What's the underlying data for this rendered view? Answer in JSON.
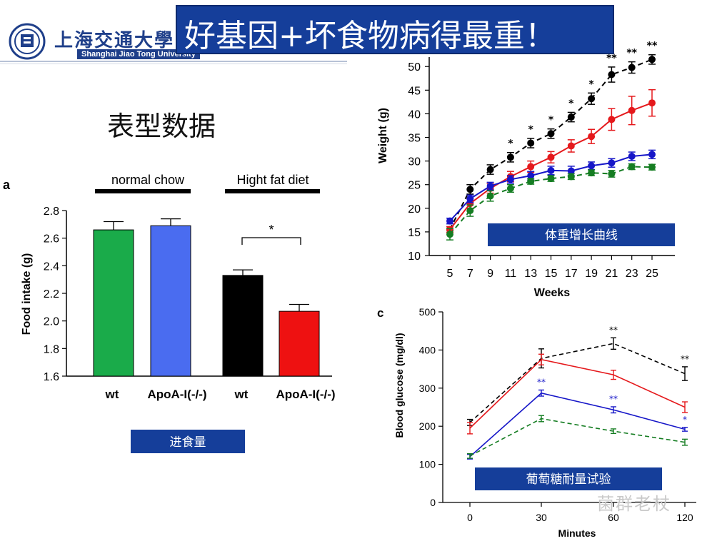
{
  "header": {
    "logo_chinese": "上海交通大學",
    "logo_english": "Shanghai Jiao Tong University",
    "title": "好基因+坏食物病得最重！"
  },
  "left_title": "表型数据",
  "watermark": "菌群老杖",
  "colors": {
    "title_bg": "#153e9a",
    "label_box": "#153e9a",
    "wt_normal": "#1aab4a",
    "apoa_normal": "#4a6cf0",
    "wt_hfd": "#000000",
    "apoa_hfd": "#ee1111",
    "black_series": "#000000",
    "red_series": "#e5191c",
    "blue_series": "#1616c8",
    "green_series": "#157d22"
  },
  "chart_data": [
    {
      "id": "food-intake",
      "type": "bar",
      "panel_letter": "a",
      "ylabel": "Food intake (g)",
      "ylim": [
        1.6,
        2.8
      ],
      "yticks": [
        "1.6",
        "1.8",
        "2.0",
        "2.2",
        "2.4",
        "2.6",
        "2.8"
      ],
      "groups": [
        "normal chow",
        "Hight fat diet"
      ],
      "categories": [
        "wt",
        "ApoA-I(-/-)",
        "wt",
        "ApoA-I(-/-)"
      ],
      "values": [
        2.66,
        2.69,
        2.33,
        2.07
      ],
      "errors": [
        0.06,
        0.05,
        0.04,
        0.05
      ],
      "significance": "*",
      "label_box": "进食量"
    },
    {
      "id": "body-weight",
      "type": "line",
      "ylabel": "Weight (g)",
      "xlabel": "Weeks",
      "ylim": [
        10,
        52
      ],
      "yticks": [
        "10",
        "15",
        "20",
        "25",
        "30",
        "35",
        "40",
        "45",
        "50"
      ],
      "x": [
        5,
        7,
        9,
        11,
        13,
        15,
        17,
        19,
        21,
        23,
        25
      ],
      "series": [
        {
          "name": "black",
          "values": [
            15.5,
            24.0,
            28.2,
            30.8,
            33.8,
            35.8,
            39.3,
            43.2,
            48.3,
            49.8,
            51.5
          ],
          "errors": [
            0.6,
            1.0,
            1.0,
            1.0,
            1.0,
            1.0,
            1.0,
            1.2,
            1.6,
            1.2,
            1.0
          ]
        },
        {
          "name": "red",
          "values": [
            15.5,
            21.0,
            24.2,
            26.7,
            28.8,
            30.8,
            33.2,
            35.2,
            38.8,
            40.7,
            42.3
          ],
          "errors": [
            0.6,
            1.0,
            1.0,
            1.1,
            1.2,
            1.2,
            1.3,
            1.5,
            2.3,
            3.0,
            2.8
          ]
        },
        {
          "name": "blue",
          "values": [
            17.3,
            22.0,
            24.7,
            26.1,
            26.9,
            28.0,
            27.9,
            29.0,
            29.6,
            31.0,
            31.4
          ],
          "errors": [
            0.6,
            0.8,
            0.8,
            0.8,
            0.9,
            0.9,
            1.0,
            0.8,
            0.9,
            0.9,
            0.9
          ]
        },
        {
          "name": "green",
          "values": [
            14.5,
            19.5,
            22.6,
            24.2,
            25.7,
            26.3,
            26.7,
            27.5,
            27.3,
            28.8,
            28.7
          ],
          "errors": [
            1.2,
            1.2,
            1.1,
            0.8,
            0.6,
            0.6,
            0.6,
            0.6,
            0.7,
            0.6,
            0.6
          ]
        }
      ],
      "annotations": [
        {
          "x": 11,
          "text": "*"
        },
        {
          "x": 13,
          "text": "*"
        },
        {
          "x": 15,
          "text": "*"
        },
        {
          "x": 17,
          "text": "*"
        },
        {
          "x": 19,
          "text": "*"
        },
        {
          "x": 21,
          "text": "**"
        },
        {
          "x": 23,
          "text": "**"
        },
        {
          "x": 25,
          "text": "**"
        }
      ],
      "label_box": "体重增长曲线"
    },
    {
      "id": "glucose-tolerance",
      "type": "line",
      "panel_letter": "c",
      "ylabel": "Blood glucose (mg/dl)",
      "xlabel": "Minutes",
      "ylim": [
        0,
        500
      ],
      "yticks": [
        "0",
        "100",
        "200",
        "300",
        "400",
        "500"
      ],
      "x_labels": [
        "0",
        "30",
        "60",
        "120"
      ],
      "series": [
        {
          "name": "black",
          "dashed": true,
          "values": [
            210,
            378,
            417,
            338
          ],
          "errors": [
            8,
            25,
            15,
            18
          ]
        },
        {
          "name": "red",
          "dashed": false,
          "values": [
            195,
            375,
            335,
            250
          ],
          "errors": [
            15,
            14,
            12,
            14
          ]
        },
        {
          "name": "blue",
          "dashed": false,
          "values": [
            120,
            287,
            243,
            192
          ],
          "errors": [
            6,
            8,
            8,
            5
          ]
        },
        {
          "name": "green",
          "dashed": true,
          "values": [
            122,
            220,
            187,
            158
          ],
          "errors": [
            6,
            8,
            6,
            8
          ]
        }
      ],
      "annotations": [
        {
          "x_index": 1,
          "series": "blue",
          "text": "**"
        },
        {
          "x_index": 2,
          "series": "blue",
          "text": "**"
        },
        {
          "x_index": 2,
          "series": "black",
          "text": "**"
        },
        {
          "x_index": 3,
          "series": "black",
          "text": "**"
        },
        {
          "x_index": 3,
          "series": "blue",
          "text": "*"
        }
      ],
      "label_box": "葡萄糖耐量试验"
    }
  ]
}
